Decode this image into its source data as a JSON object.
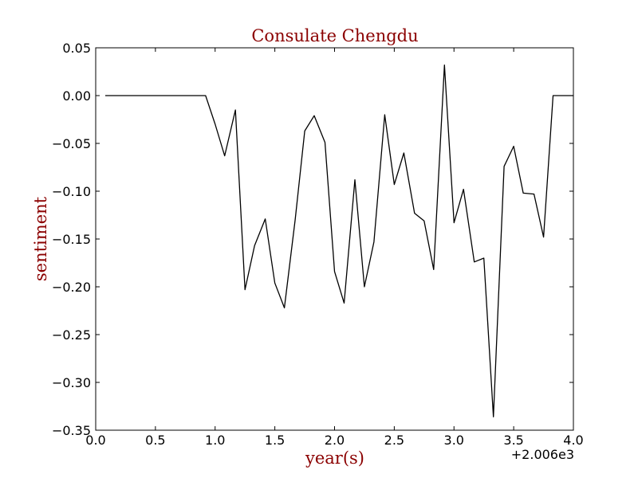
{
  "chart_data": {
    "type": "line",
    "title": "Consulate Chengdu",
    "xlabel": "year(s)",
    "ylabel": "sentiment",
    "x_offset_label": "+2.006e3",
    "xlim": [
      0.0,
      4.0
    ],
    "ylim": [
      -0.35,
      0.05
    ],
    "x_ticks": [
      0.0,
      0.5,
      1.0,
      1.5,
      2.0,
      2.5,
      3.0,
      3.5,
      4.0
    ],
    "x_tick_labels": [
      "0.0",
      "0.5",
      "1.0",
      "1.5",
      "2.0",
      "2.5",
      "3.0",
      "3.5",
      "4.0"
    ],
    "y_ticks": [
      0.05,
      0.0,
      -0.05,
      -0.1,
      -0.15,
      -0.2,
      -0.25,
      -0.3,
      -0.35
    ],
    "y_tick_labels": [
      "0.05",
      "0.00",
      "−0.05",
      "−0.10",
      "−0.15",
      "−0.20",
      "−0.25",
      "−0.30",
      "−0.35"
    ],
    "grid": false,
    "line_color": "#000000",
    "title_color": "#8b0000",
    "label_color": "#8b0000",
    "series": [
      {
        "x": [
          0.08,
          0.17,
          0.25,
          0.33,
          0.42,
          0.5,
          0.58,
          0.67,
          0.75,
          0.83,
          0.92,
          1.0,
          1.08,
          1.17,
          1.25,
          1.33,
          1.42,
          1.5,
          1.58,
          1.67,
          1.75,
          1.83,
          1.92,
          2.0,
          2.08,
          2.17,
          2.25,
          2.33,
          2.42,
          2.5,
          2.58,
          2.67,
          2.75,
          2.83,
          2.92,
          3.0,
          3.08,
          3.17,
          3.25,
          3.33,
          3.42,
          3.5,
          3.58,
          3.67,
          3.75,
          3.83,
          3.92,
          4.0
        ],
        "y": [
          0.0,
          0.0,
          0.0,
          0.0,
          0.0,
          0.0,
          0.0,
          0.0,
          0.0,
          0.0,
          0.0,
          -0.03,
          -0.063,
          -0.015,
          -0.203,
          -0.157,
          -0.129,
          -0.196,
          -0.222,
          -0.13,
          -0.037,
          -0.021,
          -0.049,
          -0.184,
          -0.217,
          -0.088,
          -0.2,
          -0.153,
          -0.02,
          -0.093,
          -0.06,
          -0.123,
          -0.131,
          -0.182,
          0.032,
          -0.133,
          -0.098,
          -0.174,
          -0.17,
          -0.336,
          -0.074,
          -0.053,
          -0.102,
          -0.103,
          -0.148,
          0.0,
          0.0,
          0.0
        ]
      }
    ]
  }
}
